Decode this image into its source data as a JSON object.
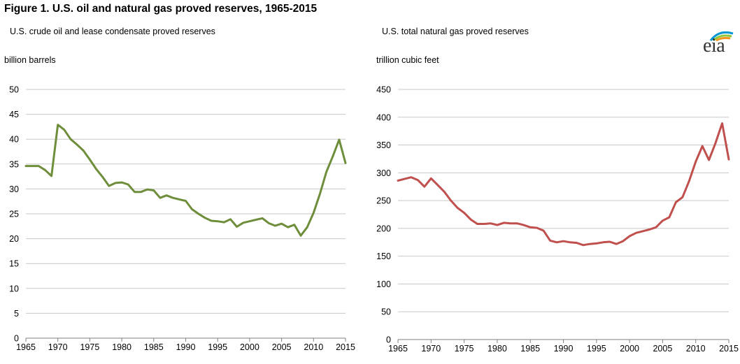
{
  "figure_title": "Figure 1. U.S. oil and natural gas proved reserves, 1965-2015",
  "logo": {
    "text": "eia",
    "icon": "eia-logo-sunrise-icon",
    "colors": [
      "#0096d6",
      "#8dc63f",
      "#f7941d"
    ]
  },
  "chart_data": [
    {
      "type": "line",
      "title": "U.S. crude oil and lease condensate proved reserves",
      "ylabel": "billion barrels",
      "xlabel": "",
      "color": "#6f8e3b",
      "xlim": [
        1965,
        2015
      ],
      "ylim": [
        0,
        50
      ],
      "x_ticks": [
        1965,
        1970,
        1975,
        1980,
        1985,
        1990,
        1995,
        2000,
        2005,
        2010,
        2015
      ],
      "y_ticks": [
        0,
        5,
        10,
        15,
        20,
        25,
        30,
        35,
        40,
        45,
        50
      ],
      "grid": true,
      "series": [
        {
          "name": "Crude oil and lease condensate",
          "x": [
            1965,
            1966,
            1967,
            1968,
            1969,
            1970,
            1971,
            1972,
            1973,
            1974,
            1975,
            1976,
            1977,
            1978,
            1979,
            1980,
            1981,
            1982,
            1983,
            1984,
            1985,
            1986,
            1987,
            1988,
            1989,
            1990,
            1991,
            1992,
            1993,
            1994,
            1995,
            1996,
            1997,
            1998,
            1999,
            2000,
            2001,
            2002,
            2003,
            2004,
            2005,
            2006,
            2007,
            2008,
            2009,
            2010,
            2011,
            2012,
            2013,
            2014,
            2015
          ],
          "values": [
            34.6,
            34.6,
            34.6,
            33.8,
            32.6,
            42.9,
            41.9,
            40.0,
            38.9,
            37.7,
            35.9,
            34.0,
            32.4,
            30.6,
            31.2,
            31.3,
            30.9,
            29.4,
            29.4,
            29.9,
            29.7,
            28.2,
            28.7,
            28.2,
            27.9,
            27.6,
            25.9,
            25.0,
            24.2,
            23.6,
            23.5,
            23.3,
            23.9,
            22.4,
            23.2,
            23.5,
            23.8,
            24.1,
            23.1,
            22.6,
            23.0,
            22.3,
            22.8,
            20.6,
            22.3,
            25.2,
            29.0,
            33.4,
            36.5,
            39.9,
            35.2
          ]
        }
      ]
    },
    {
      "type": "line",
      "title": "U.S. total natural gas proved reserves",
      "ylabel": "trillion cubic feet",
      "xlabel": "",
      "color": "#c0504d",
      "xlim": [
        1965,
        2015
      ],
      "ylim": [
        0,
        450
      ],
      "x_ticks": [
        1965,
        1970,
        1975,
        1980,
        1985,
        1990,
        1995,
        2000,
        2005,
        2010,
        2015
      ],
      "y_ticks": [
        0,
        50,
        100,
        150,
        200,
        250,
        300,
        350,
        400,
        450
      ],
      "grid": true,
      "series": [
        {
          "name": "Total natural gas",
          "x": [
            1965,
            1966,
            1967,
            1968,
            1969,
            1970,
            1971,
            1972,
            1973,
            1974,
            1975,
            1976,
            1977,
            1978,
            1979,
            1980,
            1981,
            1982,
            1983,
            1984,
            1985,
            1986,
            1987,
            1988,
            1989,
            1990,
            1991,
            1992,
            1993,
            1994,
            1995,
            1996,
            1997,
            1998,
            1999,
            2000,
            2001,
            2002,
            2003,
            2004,
            2005,
            2006,
            2007,
            2008,
            2009,
            2010,
            2011,
            2012,
            2013,
            2014,
            2015
          ],
          "values": [
            286,
            289,
            292,
            287,
            275,
            290,
            278,
            266,
            250,
            237,
            228,
            216,
            208,
            208,
            209,
            206,
            210,
            209,
            209,
            206,
            202,
            201,
            196,
            178,
            175,
            177,
            175,
            174,
            170,
            172,
            173,
            175,
            176,
            172,
            177,
            186,
            192,
            195,
            198,
            202,
            214,
            220,
            247,
            256,
            285,
            320,
            348,
            323,
            354,
            389,
            324
          ]
        }
      ]
    }
  ]
}
